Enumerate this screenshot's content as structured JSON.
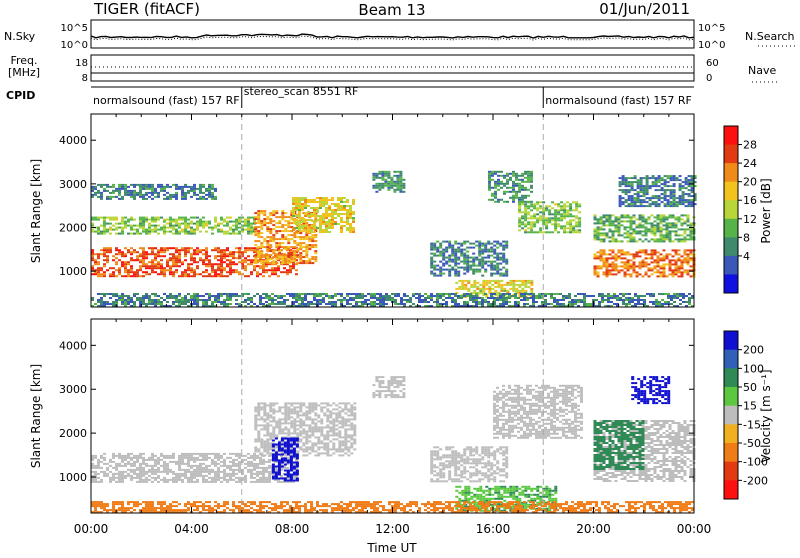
{
  "header": {
    "title": "TIGER (fitACF)",
    "beam": "Beam 13",
    "date": "01/Jun/2011"
  },
  "top_panels": {
    "nsky_label": "N.Sky",
    "nsky_ticks": [
      "10^5",
      "10^0"
    ],
    "nsearch_label": "N.Search",
    "nsearch_ticks": [
      "10^5",
      "10^0"
    ],
    "freq_label_1": "Freq.",
    "freq_label_2": "[MHz]",
    "freq_ticks": [
      "18",
      "8"
    ],
    "nave_label": "Nave",
    "nave_ticks": [
      "60",
      "0"
    ],
    "cpid_label": "CPID",
    "cpid_segments": [
      {
        "label": "normalsound (fast) 157 RF",
        "start_hour": 0,
        "end_hour": 6
      },
      {
        "label": "stereo_scan 8551 RF",
        "start_hour": 6,
        "end_hour": 18
      },
      {
        "label": "normalsound (fast) 157 RF",
        "start_hour": 18,
        "end_hour": 24
      }
    ]
  },
  "chart_data": [
    {
      "type": "heatmap",
      "panel": "power",
      "ylabel": "Slant Range [km]",
      "ylim": [
        180,
        4600
      ],
      "yticks": [
        "1000",
        "2000",
        "3000",
        "4000"
      ],
      "xlim_hours": [
        0,
        24
      ],
      "colorbar": {
        "label": "Power [dB]",
        "ticks": [
          "4",
          "8",
          "12",
          "16",
          "20",
          "24",
          "28"
        ],
        "colors": [
          "#1010e0",
          "#3a58b8",
          "#3f8a6c",
          "#55b34a",
          "#b8d53a",
          "#f2c21e",
          "#f08a18",
          "#e23a12",
          "#ff1010"
        ]
      },
      "echo_regions": [
        {
          "t0": 0.0,
          "t1": 8.2,
          "r0": 900,
          "r1": 1550,
          "level": 26
        },
        {
          "t0": 0.0,
          "t1": 6.5,
          "r0": 1850,
          "r1": 2250,
          "level": 14
        },
        {
          "t0": 0.0,
          "t1": 5.0,
          "r0": 2650,
          "r1": 3000,
          "level": 8
        },
        {
          "t0": 6.5,
          "t1": 9.0,
          "r0": 1200,
          "r1": 2400,
          "level": 22
        },
        {
          "t0": 8.0,
          "t1": 10.5,
          "r0": 1900,
          "r1": 2700,
          "level": 18
        },
        {
          "t0": 11.2,
          "t1": 12.4,
          "r0": 2800,
          "r1": 3300,
          "level": 10
        },
        {
          "t0": 13.5,
          "t1": 16.5,
          "r0": 900,
          "r1": 1700,
          "level": 8
        },
        {
          "t0": 15.8,
          "t1": 17.5,
          "r0": 2600,
          "r1": 3300,
          "level": 10
        },
        {
          "t0": 17.0,
          "t1": 19.5,
          "r0": 1900,
          "r1": 2600,
          "level": 14
        },
        {
          "t0": 14.5,
          "t1": 17.5,
          "r0": 400,
          "r1": 800,
          "level": 18
        },
        {
          "t0": 0.0,
          "t1": 24.0,
          "r0": 180,
          "r1": 500,
          "level": 8
        },
        {
          "t0": 20.0,
          "t1": 24.0,
          "r0": 900,
          "r1": 1500,
          "level": 24
        },
        {
          "t0": 20.0,
          "t1": 24.0,
          "r0": 1700,
          "r1": 2300,
          "level": 12
        },
        {
          "t0": 21.0,
          "t1": 24.0,
          "r0": 2500,
          "r1": 3200,
          "level": 8
        }
      ]
    },
    {
      "type": "heatmap",
      "panel": "velocity",
      "ylabel": "Slant Range [km]",
      "xlabel": "Time UT",
      "ylim": [
        180,
        4600
      ],
      "yticks": [
        "1000",
        "2000",
        "3000",
        "4000"
      ],
      "xlim_hours": [
        0,
        24
      ],
      "xticks": [
        "00:00",
        "04:00",
        "08:00",
        "12:00",
        "16:00",
        "20:00",
        "00:00"
      ],
      "colorbar": {
        "label": "Velocity [m s⁻¹]",
        "ticks": [
          "200",
          "100",
          "50",
          "15",
          "-15",
          "-50",
          "-100",
          "-200"
        ],
        "colors": [
          "#1010d0",
          "#3060b8",
          "#2f8a55",
          "#5cc840",
          "#bdbdbd",
          "#f0b020",
          "#f07c18",
          "#e33a12",
          "#ff1010"
        ]
      },
      "echo_regions": [
        {
          "t0": 0.0,
          "t1": 8.2,
          "r0": 900,
          "r1": 1550,
          "level": 0
        },
        {
          "t0": 6.5,
          "t1": 10.5,
          "r0": 1500,
          "r1": 2700,
          "level": 0
        },
        {
          "t0": 7.2,
          "t1": 8.2,
          "r0": 900,
          "r1": 1900,
          "level": 200
        },
        {
          "t0": 11.2,
          "t1": 12.4,
          "r0": 2800,
          "r1": 3300,
          "level": 0
        },
        {
          "t0": 13.5,
          "t1": 16.5,
          "r0": 900,
          "r1": 1700,
          "level": 0
        },
        {
          "t0": 16.0,
          "t1": 19.5,
          "r0": 1900,
          "r1": 3100,
          "level": 0
        },
        {
          "t0": 14.5,
          "t1": 18.5,
          "r0": 250,
          "r1": 800,
          "level": 30
        },
        {
          "t0": 0.0,
          "t1": 24.0,
          "r0": 180,
          "r1": 450,
          "level": -40
        },
        {
          "t0": 20.0,
          "t1": 24.0,
          "r0": 900,
          "r1": 2300,
          "level": 0
        },
        {
          "t0": 20.0,
          "t1": 22.0,
          "r0": 1200,
          "r1": 2300,
          "level": 40
        },
        {
          "t0": 21.5,
          "t1": 23.0,
          "r0": 2700,
          "r1": 3300,
          "level": 200
        }
      ]
    }
  ]
}
